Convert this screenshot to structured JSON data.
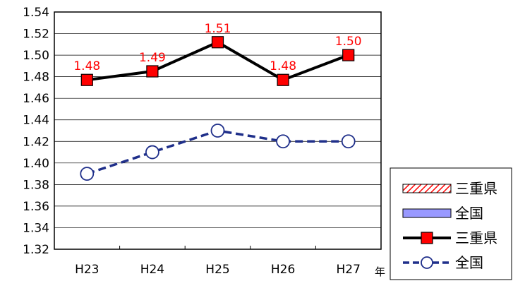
{
  "chart_data": {
    "type": "line",
    "categories": [
      "H23",
      "H24",
      "H25",
      "H26",
      "H27"
    ],
    "x_unit": "年",
    "ylim": [
      1.32,
      1.54
    ],
    "yticks": [
      "1.32",
      "1.34",
      "1.36",
      "1.38",
      "1.40",
      "1.42",
      "1.44",
      "1.46",
      "1.48",
      "1.50",
      "1.52",
      "1.54"
    ],
    "grid": true,
    "legend_position": "bottom-right",
    "series": [
      {
        "name": "三重県",
        "values": [
          1.477,
          1.485,
          1.512,
          1.477,
          1.5
        ],
        "labels": [
          "1.48",
          "1.49",
          "1.51",
          "1.48",
          "1.50"
        ],
        "color": "#000000",
        "marker": "square",
        "marker_color": "#ff0000"
      },
      {
        "name": "全国",
        "values": [
          1.39,
          1.41,
          1.43,
          1.42,
          1.42
        ],
        "color": "#1f2f8a",
        "marker": "open-circle",
        "dashed": true
      }
    ],
    "legend": [
      {
        "label": "三重県",
        "kind": "hatched-bar",
        "color": "#ff0000"
      },
      {
        "label": "全国",
        "kind": "bar",
        "color": "#9999ff"
      },
      {
        "label": "三重県",
        "kind": "line-square",
        "color": "#000000",
        "marker_color": "#ff0000"
      },
      {
        "label": "全国",
        "kind": "dashed-circle",
        "color": "#1f2f8a"
      }
    ]
  }
}
